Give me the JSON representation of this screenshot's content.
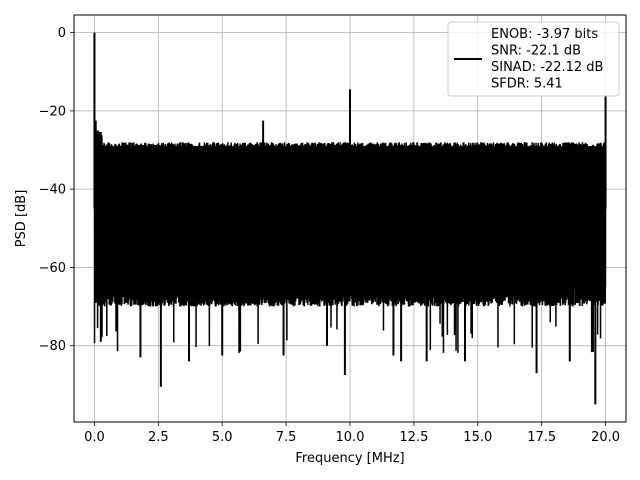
{
  "chart_data": {
    "type": "line",
    "xlabel": "Frequency [MHz]",
    "ylabel": "PSD [dB]",
    "xlim": [
      -0.8,
      20.8
    ],
    "ylim": [
      -99.5,
      4.5
    ],
    "x_ticks": [
      0.0,
      2.5,
      5.0,
      7.5,
      10.0,
      12.5,
      15.0,
      17.5,
      20.0
    ],
    "x_tick_labels": [
      "0.0",
      "2.5",
      "5.0",
      "7.5",
      "10.0",
      "12.5",
      "15.0",
      "17.5",
      "20.0"
    ],
    "y_ticks": [
      0,
      -20,
      -40,
      -60,
      -80
    ],
    "y_tick_labels": [
      "0",
      "−20",
      "−40",
      "−60",
      "−80"
    ],
    "grid": true,
    "legend_position": "top-right",
    "legend_lines": [
      "ENOB: -3.97 bits",
      "SNR: -22.1 dB",
      "SINAD: -22.12 dB",
      "SFDR: 5.41"
    ],
    "series": [
      {
        "color": "#000000",
        "description": "dense noise-like power spectral density",
        "noise_floor_top_db": -27,
        "noise_floor_bottom_db": -66,
        "spikes": [
          {
            "x": 0.0,
            "y": 0.0
          },
          {
            "x": 0.05,
            "y": -22.5
          },
          {
            "x": 10.0,
            "y": -14.5
          },
          {
            "x": 20.0,
            "y": -16.0
          },
          {
            "x": 6.6,
            "y": -22.5
          }
        ],
        "dips": [
          {
            "x": 0.25,
            "y": -79
          },
          {
            "x": 1.8,
            "y": -83
          },
          {
            "x": 2.6,
            "y": -90.5
          },
          {
            "x": 3.7,
            "y": -84
          },
          {
            "x": 5.0,
            "y": -82.5
          },
          {
            "x": 7.4,
            "y": -82.5
          },
          {
            "x": 9.1,
            "y": -80
          },
          {
            "x": 9.8,
            "y": -87.5
          },
          {
            "x": 11.7,
            "y": -82.5
          },
          {
            "x": 12.0,
            "y": -84
          },
          {
            "x": 13.0,
            "y": -84
          },
          {
            "x": 14.5,
            "y": -84
          },
          {
            "x": 17.3,
            "y": -87
          },
          {
            "x": 18.6,
            "y": -84
          },
          {
            "x": 19.6,
            "y": -95
          }
        ]
      }
    ]
  }
}
